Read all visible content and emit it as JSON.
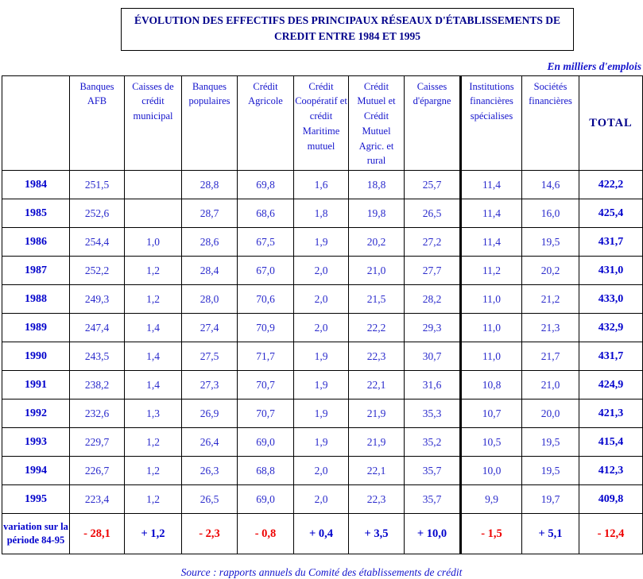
{
  "title": {
    "line1": "ÉVOLUTION DES EFFECTIFS DES PRINCIPAUX RÉSEAUX D'ÉTABLISSEMENTS DE",
    "line2": "CREDIT ENTRE 1984 ET 1995"
  },
  "unit_note": "En milliers d'emplois",
  "colors": {
    "title_navy": "#00008B",
    "data_blue": "#2A2ACC",
    "bold_blue": "#0000CC",
    "negative_red": "#EE0000",
    "border_black": "#000000"
  },
  "table": {
    "columns": [
      "",
      "Banques AFB",
      "Caisses de crédit municipal",
      "Banques populaires",
      "Crédit Agricole",
      "Crédit Coopératif et crédit Maritime mutuel",
      "Crédit Mutuel et Crédit Mutuel Agric. et rural",
      "Caisses d'épargne",
      "Institutions financières spécialises",
      "Sociétés financières",
      "TOTAL"
    ],
    "rows": [
      {
        "year": "1984",
        "values": [
          "251,5",
          "",
          "28,8",
          "69,8",
          "1,6",
          "18,8",
          "25,7",
          "11,4",
          "14,6"
        ],
        "total": "422,2"
      },
      {
        "year": "1985",
        "values": [
          "252,6",
          "",
          "28,7",
          "68,6",
          "1,8",
          "19,8",
          "26,5",
          "11,4",
          "16,0"
        ],
        "total": "425,4"
      },
      {
        "year": "1986",
        "values": [
          "254,4",
          "1,0",
          "28,6",
          "67,5",
          "1,9",
          "20,2",
          "27,2",
          "11,4",
          "19,5"
        ],
        "total": "431,7"
      },
      {
        "year": "1987",
        "values": [
          "252,2",
          "1,2",
          "28,4",
          "67,0",
          "2,0",
          "21,0",
          "27,7",
          "11,2",
          "20,2"
        ],
        "total": "431,0"
      },
      {
        "year": "1988",
        "values": [
          "249,3",
          "1,2",
          "28,0",
          "70,6",
          "2,0",
          "21,5",
          "28,2",
          "11,0",
          "21,2"
        ],
        "total": "433,0"
      },
      {
        "year": "1989",
        "values": [
          "247,4",
          "1,4",
          "27,4",
          "70,9",
          "2,0",
          "22,2",
          "29,3",
          "11,0",
          "21,3"
        ],
        "total": "432,9"
      },
      {
        "year": "1990",
        "values": [
          "243,5",
          "1,4",
          "27,5",
          "71,7",
          "1,9",
          "22,3",
          "30,7",
          "11,0",
          "21,7"
        ],
        "total": "431,7"
      },
      {
        "year": "1991",
        "values": [
          "238,2",
          "1,4",
          "27,3",
          "70,7",
          "1,9",
          "22,1",
          "31,6",
          "10,8",
          "21,0"
        ],
        "total": "424,9"
      },
      {
        "year": "1992",
        "values": [
          "232,6",
          "1,3",
          "26,9",
          "70,7",
          "1,9",
          "21,9",
          "35,3",
          "10,7",
          "20,0"
        ],
        "total": "421,3"
      },
      {
        "year": "1993",
        "values": [
          "229,7",
          "1,2",
          "26,4",
          "69,0",
          "1,9",
          "21,9",
          "35,2",
          "10,5",
          "19,5"
        ],
        "total": "415,4"
      },
      {
        "year": "1994",
        "values": [
          "226,7",
          "1,2",
          "26,3",
          "68,8",
          "2,0",
          "22,1",
          "35,7",
          "10,0",
          "19,5"
        ],
        "total": "412,3"
      },
      {
        "year": "1995",
        "values": [
          "223,4",
          "1,2",
          "26,5",
          "69,0",
          "2,0",
          "22,3",
          "35,7",
          "9,9",
          "19,7"
        ],
        "total": "409,8"
      }
    ],
    "variation": {
      "label": "variation sur la période 84-95",
      "values": [
        "- 28,1",
        "+ 1,2",
        "- 2,3",
        "- 0,8",
        "+ 0,4",
        "+ 3,5",
        "+ 10,0",
        "- 1,5",
        "+ 5,1"
      ],
      "total": "- 12,4"
    }
  },
  "source": "Source : rapports annuels du Comité des établissements de crédit"
}
